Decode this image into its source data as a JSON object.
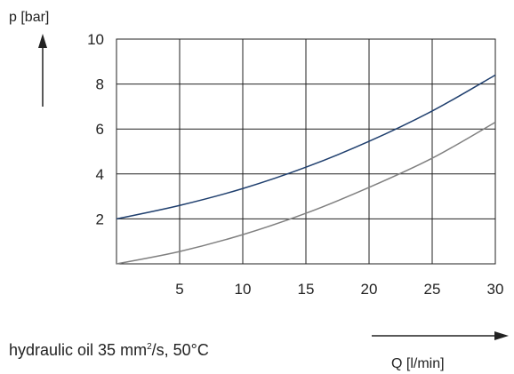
{
  "chart_data": {
    "type": "line",
    "ylabel": "p [bar]",
    "xlabel": "Q [l/min]",
    "xlim": [
      0,
      30
    ],
    "ylim": [
      0,
      10
    ],
    "x_ticks": [
      5,
      10,
      15,
      20,
      25,
      30
    ],
    "y_ticks": [
      2,
      4,
      6,
      8,
      10
    ],
    "grid": true,
    "colors": {
      "upper": "#1f3f6e",
      "lower": "#808080",
      "grid": "#222222"
    },
    "series": [
      {
        "x": [
          0,
          5,
          10,
          15,
          20,
          25,
          30
        ],
        "y": [
          2.0,
          2.6,
          3.35,
          4.3,
          5.45,
          6.8,
          8.4
        ]
      },
      {
        "x": [
          0,
          5,
          10,
          15,
          20,
          25,
          30
        ],
        "y": [
          0.0,
          0.55,
          1.3,
          2.25,
          3.4,
          4.7,
          6.3
        ]
      }
    ]
  },
  "note": {
    "prefix": "hydraulic oil 35 mm",
    "sup": "2",
    "suffix": "/s, 50°C"
  }
}
